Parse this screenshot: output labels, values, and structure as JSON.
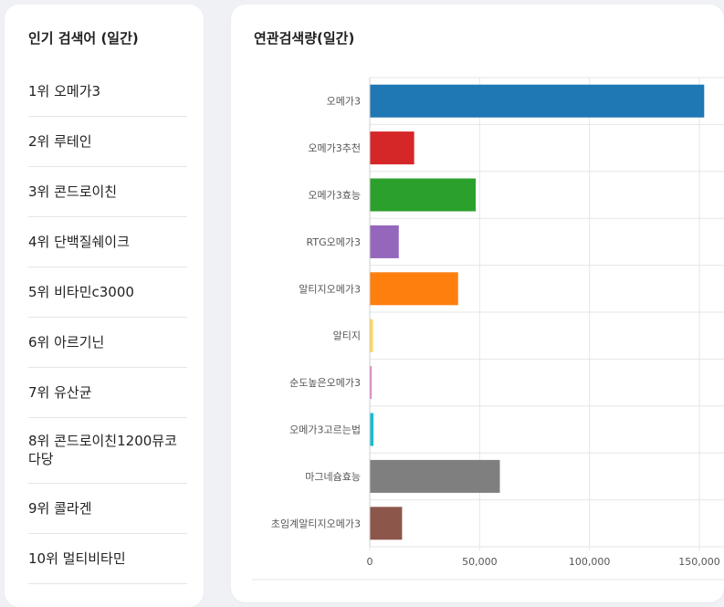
{
  "popular": {
    "title": "인기 검색어 (일간)",
    "items": [
      {
        "label": "1위 오메가3"
      },
      {
        "label": "2위 루테인"
      },
      {
        "label": "3위 콘드로이친"
      },
      {
        "label": "4위 단백질쉐이크"
      },
      {
        "label": "5위 비타민c3000"
      },
      {
        "label": "6위 아르기닌"
      },
      {
        "label": "7위 유산균"
      },
      {
        "label": "8위 콘드로이친1200뮤코다당"
      },
      {
        "label": "9위 콜라겐"
      },
      {
        "label": "10위 멀티비타민"
      }
    ]
  },
  "related": {
    "title": "연관검색량(일간)"
  },
  "chart_data": {
    "type": "bar",
    "orientation": "horizontal",
    "categories": [
      "오메가3",
      "오메가3추천",
      "오메가3효능",
      "RTG오메가3",
      "알티지오메가3",
      "알티지",
      "순도높은오메가3",
      "오메가3고르는법",
      "마그네슘효능",
      "초임계알티지오메가3"
    ],
    "values": [
      152000,
      20000,
      48000,
      13000,
      40000,
      1200,
      600,
      1500,
      59000,
      14500
    ],
    "colors": [
      "#1f77b4",
      "#d62728",
      "#2ca02c",
      "#9467bd",
      "#ff7f0e",
      "#ffd54f",
      "#e377c2",
      "#17becf",
      "#7f7f7f",
      "#8c564b"
    ],
    "xticks": [
      "0",
      "50,000",
      "100,000",
      "150,000"
    ],
    "xtick_values": [
      0,
      50000,
      100000,
      150000
    ],
    "xlim": [
      0,
      150000
    ],
    "grid": true
  }
}
